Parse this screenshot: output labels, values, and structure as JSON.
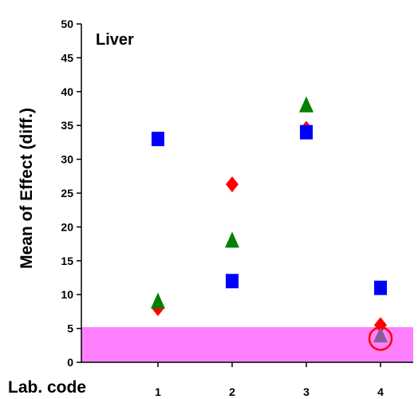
{
  "chart_data": {
    "type": "scatter",
    "title": "Liver",
    "ylabel": "Mean of Effect (diff.)",
    "xlabel": "Lab. code",
    "categories": [
      "1",
      "2",
      "3",
      "4"
    ],
    "y_ticks": [
      "0",
      "5",
      "10",
      "15",
      "20",
      "25",
      "30",
      "35",
      "40",
      "45",
      "50"
    ],
    "ylim": [
      0,
      50
    ],
    "grid": false,
    "legend": "none",
    "highlight_band": {
      "y0": 0,
      "y1": 5.2,
      "color": "#ff80ff"
    },
    "series": [
      {
        "marker": "square",
        "color": "#0000ff",
        "values": [
          33,
          12,
          34,
          11
        ]
      },
      {
        "marker": "diamond",
        "color": "#ff0000",
        "values": [
          8,
          26.3,
          34.5,
          5.5
        ]
      },
      {
        "marker": "triangle",
        "color": "#008000",
        "values": [
          9,
          18,
          38,
          4
        ]
      }
    ],
    "annotations": [
      {
        "type": "circle",
        "category": "4",
        "y": 3.5,
        "color": "#ff0000"
      }
    ],
    "point_overrides": [
      {
        "series": 2,
        "index": 3,
        "color": "#8a5a9a"
      }
    ]
  }
}
